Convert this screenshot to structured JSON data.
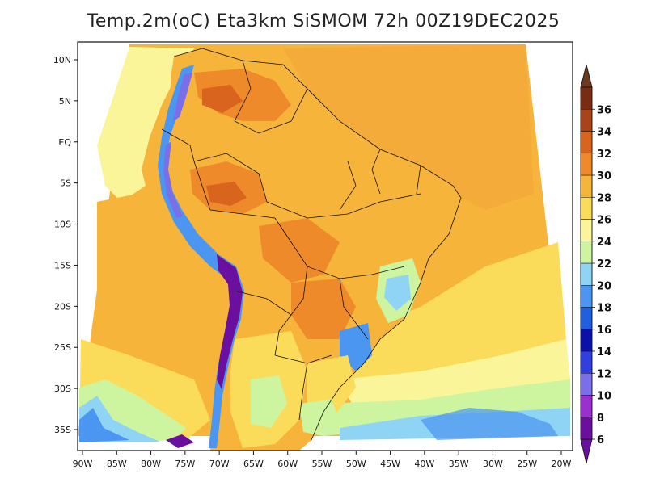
{
  "title": "Temp.2m(oC) Eta3km SiSMOM 72h 00Z19DEC2025",
  "map": {
    "variable": "2 m air temperature",
    "units": "oC",
    "lon_range": [
      -90,
      -20
    ],
    "lat_range": [
      -38,
      12
    ],
    "lon_ticks": [
      "90W",
      "85W",
      "80W",
      "75W",
      "70W",
      "65W",
      "60W",
      "55W",
      "50W",
      "45W",
      "40W",
      "35W",
      "30W",
      "25W",
      "20W"
    ],
    "lat_ticks": [
      "10N",
      "5N",
      "EQ",
      "5S",
      "10S",
      "15S",
      "20S",
      "25S",
      "30S",
      "35S"
    ]
  },
  "colorbar": {
    "labels": [
      "6",
      "8",
      "10",
      "12",
      "14",
      "16",
      "18",
      "20",
      "22",
      "24",
      "26",
      "28",
      "30",
      "32",
      "34",
      "36"
    ],
    "colors": [
      "#6a0f9e",
      "#9b2fd0",
      "#7a6fe8",
      "#2f3fe0",
      "#0a10a8",
      "#1f5fe0",
      "#4a96f0",
      "#8fd4f5",
      "#cdf5a0",
      "#fbf59a",
      "#fbdc5a",
      "#f7b43a",
      "#ee8a2a",
      "#d8641e",
      "#a8441a",
      "#7a2c12"
    ],
    "arrow_low": "#6a0f9e",
    "arrow_high": "#6b3a1e"
  }
}
